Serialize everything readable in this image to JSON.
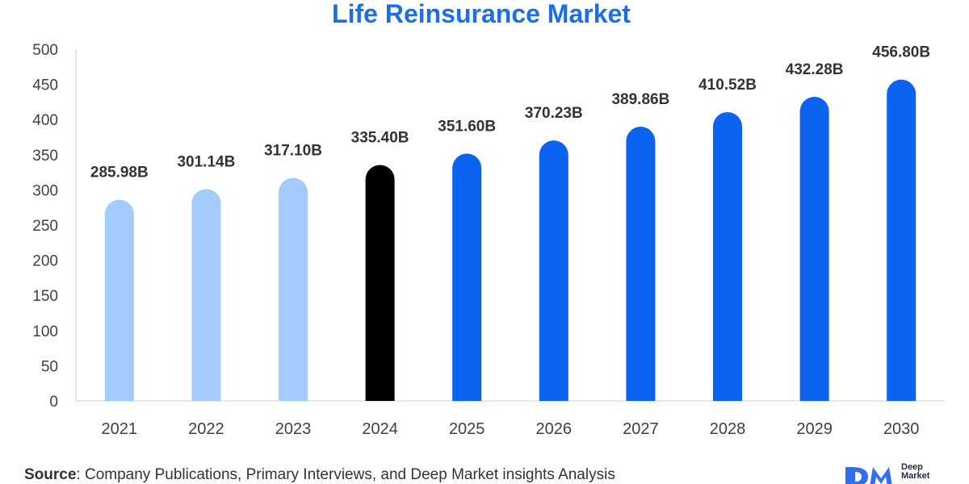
{
  "chart_data": {
    "type": "bar",
    "title": "Life Reinsurance Market",
    "xlabel": "",
    "ylabel": "",
    "categories": [
      "2021",
      "2022",
      "2023",
      "2024",
      "2025",
      "2026",
      "2027",
      "2028",
      "2029",
      "2030"
    ],
    "values": [
      285.98,
      301.14,
      317.1,
      335.4,
      351.6,
      370.23,
      389.86,
      410.52,
      432.28,
      456.8
    ],
    "data_labels": [
      "285.98B",
      "301.14B",
      "317.10B",
      "335.40B",
      "351.60B",
      "370.23B",
      "389.86B",
      "410.52B",
      "432.28B",
      "456.80B"
    ],
    "ylim": [
      0,
      500
    ],
    "yticks": [
      "0",
      "50",
      "100",
      "150",
      "200",
      "250",
      "300",
      "350",
      "400",
      "450",
      "500"
    ],
    "grid": false,
    "legend": "none",
    "colors": {
      "title": "#1a6ee8",
      "historical": "#a3cbfb",
      "base_year": "#000000",
      "forecast": "#0b63f0"
    },
    "bar_colors": [
      "historical",
      "historical",
      "historical",
      "base_year",
      "forecast",
      "forecast",
      "forecast",
      "forecast",
      "forecast",
      "forecast"
    ]
  },
  "footer": {
    "source_label": "Source",
    "source_text": ": Company Publications, Primary Interviews, and Deep Market insights Analysis"
  },
  "logo": {
    "mark": "DM",
    "line1": "Deep",
    "line2": "Market"
  }
}
